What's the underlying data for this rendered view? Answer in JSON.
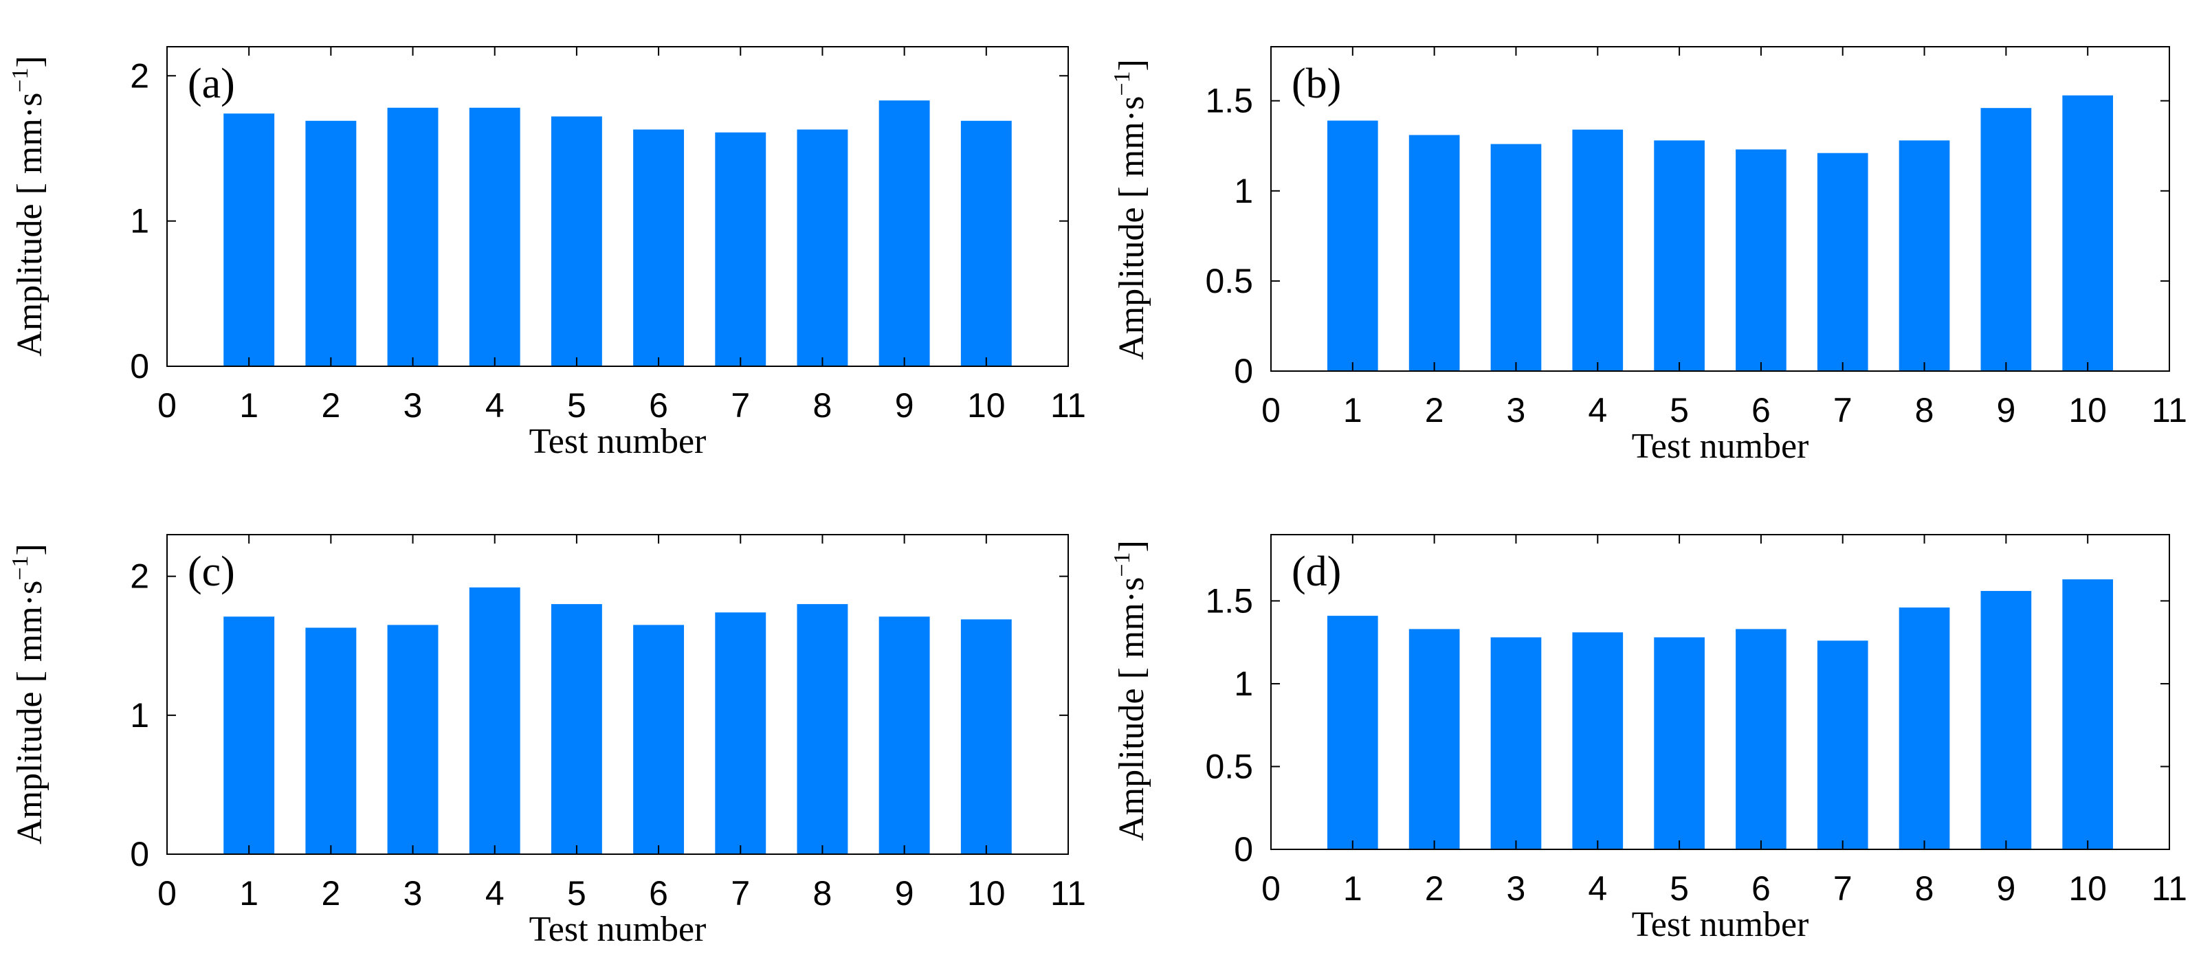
{
  "chart_data": [
    {
      "type": "bar",
      "panel_label": "(a)",
      "x": [
        1,
        2,
        3,
        4,
        5,
        6,
        7,
        8,
        9,
        10
      ],
      "values": [
        1.74,
        1.69,
        1.78,
        1.78,
        1.72,
        1.63,
        1.61,
        1.63,
        1.83,
        1.69
      ],
      "xlabel": "Test number",
      "ylabel_main": "Amplitude [ mm·s",
      "ylabel_sup": "−1",
      "ylabel_end": "]",
      "xlim": [
        0,
        11
      ],
      "ylim": [
        0,
        2.2
      ],
      "xticks": [
        "0",
        "1",
        "2",
        "3",
        "4",
        "5",
        "6",
        "7",
        "8",
        "9",
        "10",
        "11"
      ],
      "yticks": [
        {
          "value": 0,
          "label": "0"
        },
        {
          "value": 1,
          "label": "1"
        },
        {
          "value": 2,
          "label": "2"
        }
      ],
      "bar_color": "#0080ff",
      "grid": false
    },
    {
      "type": "bar",
      "panel_label": "(b)",
      "x": [
        1,
        2,
        3,
        4,
        5,
        6,
        7,
        8,
        9,
        10
      ],
      "values": [
        1.39,
        1.31,
        1.26,
        1.34,
        1.28,
        1.23,
        1.21,
        1.28,
        1.46,
        1.53
      ],
      "xlabel": "Test number",
      "ylabel_main": "Amplitude [ mm·s",
      "ylabel_sup": "−1",
      "ylabel_end": "]",
      "xlim": [
        0,
        11
      ],
      "ylim": [
        0,
        1.8
      ],
      "xticks": [
        "0",
        "1",
        "2",
        "3",
        "4",
        "5",
        "6",
        "7",
        "8",
        "9",
        "10",
        "11"
      ],
      "yticks": [
        {
          "value": 0,
          "label": "0"
        },
        {
          "value": 0.5,
          "label": "0.5"
        },
        {
          "value": 1,
          "label": "1"
        },
        {
          "value": 1.5,
          "label": "1.5"
        }
      ],
      "bar_color": "#0080ff",
      "grid": false
    },
    {
      "type": "bar",
      "panel_label": "(c)",
      "x": [
        1,
        2,
        3,
        4,
        5,
        6,
        7,
        8,
        9,
        10
      ],
      "values": [
        1.71,
        1.63,
        1.65,
        1.92,
        1.8,
        1.65,
        1.74,
        1.8,
        1.71,
        1.69
      ],
      "xlabel": "Test number",
      "ylabel_main": "Amplitude [ mm·s",
      "ylabel_sup": "−1",
      "ylabel_end": "]",
      "xlim": [
        0,
        11
      ],
      "ylim": [
        0,
        2.3
      ],
      "xticks": [
        "0",
        "1",
        "2",
        "3",
        "4",
        "5",
        "6",
        "7",
        "8",
        "9",
        "10",
        "11"
      ],
      "yticks": [
        {
          "value": 0,
          "label": "0"
        },
        {
          "value": 1,
          "label": "1"
        },
        {
          "value": 2,
          "label": "2"
        }
      ],
      "bar_color": "#0080ff",
      "grid": false
    },
    {
      "type": "bar",
      "panel_label": "(d)",
      "x": [
        1,
        2,
        3,
        4,
        5,
        6,
        7,
        8,
        9,
        10
      ],
      "values": [
        1.41,
        1.33,
        1.28,
        1.31,
        1.28,
        1.33,
        1.26,
        1.46,
        1.56,
        1.63
      ],
      "xlabel": "Test number",
      "ylabel_main": "Amplitude [ mm·s",
      "ylabel_sup": "−1",
      "ylabel_end": "]",
      "xlim": [
        0,
        11
      ],
      "ylim": [
        0,
        1.9
      ],
      "xticks": [
        "0",
        "1",
        "2",
        "3",
        "4",
        "5",
        "6",
        "7",
        "8",
        "9",
        "10",
        "11"
      ],
      "yticks": [
        {
          "value": 0,
          "label": "0"
        },
        {
          "value": 0.5,
          "label": "0.5"
        },
        {
          "value": 1,
          "label": "1"
        },
        {
          "value": 1.5,
          "label": "1.5"
        }
      ],
      "bar_color": "#0080ff",
      "grid": false
    }
  ]
}
